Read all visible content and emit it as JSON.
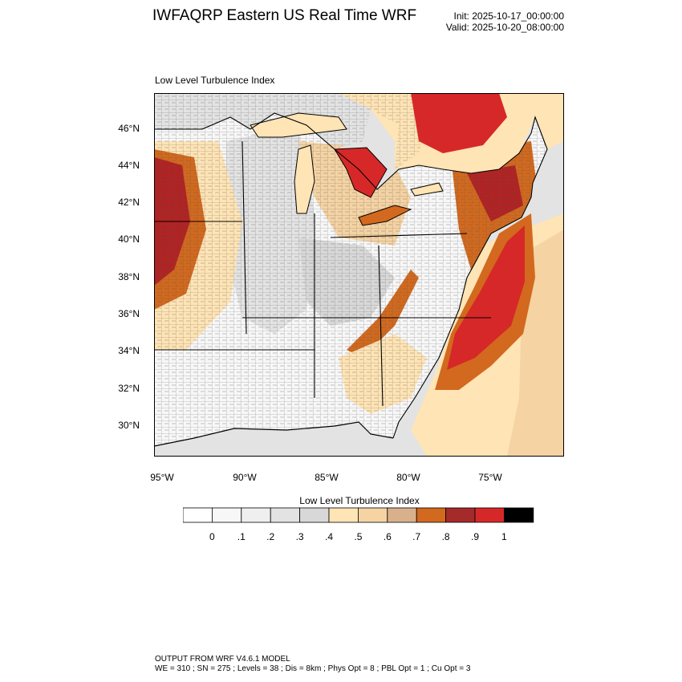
{
  "header": {
    "title": "IWFAQRP Eastern US Real Time WRF",
    "init": "Init: 2025-10-17_00:00:00",
    "valid": "Valid: 2025-10-20_08:00:00"
  },
  "map": {
    "subtitle": "Low Level Turbulence Index",
    "lat_labels": [
      "46°N",
      "44°N",
      "42°N",
      "40°N",
      "38°N",
      "36°N",
      "34°N",
      "32°N",
      "30°N"
    ],
    "lon_labels": [
      "95°W",
      "90°W",
      "85°W",
      "80°W",
      "75°W"
    ],
    "colors": {
      "land_bg": "#f7f7f7",
      "water": "#e3e3e3",
      "light_gray": "#d8d8d8",
      "tan1": "#ffe4b5",
      "tan2": "#f5d3a3",
      "tan3": "#d9b08c",
      "orange": "#d2691e",
      "red_dark": "#b22222",
      "red": "#d62828"
    }
  },
  "colorbar": {
    "title": "Low Level Turbulence Index",
    "ticks": [
      "0",
      ".1",
      ".2",
      ".3",
      ".4",
      ".5",
      ".6",
      ".7",
      ".8",
      ".9",
      "1"
    ],
    "colors": [
      "#ffffff",
      "#f7f7f7",
      "#efefef",
      "#e3e3e3",
      "#d8d8d8",
      "#ffe4b5",
      "#f5d3a3",
      "#d9b08c",
      "#d2691e",
      "#a52a2a",
      "#d62828",
      "#000000"
    ]
  },
  "footer": {
    "line1": "OUTPUT FROM WRF V4.6.1 MODEL",
    "line2": "WE = 310 ; SN = 275 ; Levels = 38 ; Dis = 8km ; Phys Opt = 8 ; PBL Opt = 1 ; Cu Opt = 3"
  }
}
